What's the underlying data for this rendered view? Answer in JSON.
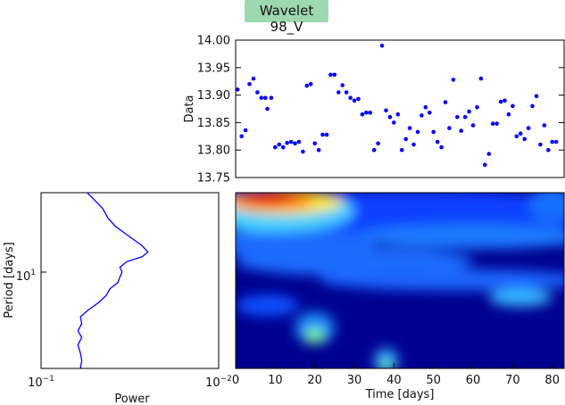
{
  "title": "Wavelet 98_V",
  "chart_data": [
    {
      "id": "data-scatter",
      "type": "scatter",
      "color": "#0000ff",
      "xlim": [
        0,
        83
      ],
      "ylim": [
        13.75,
        14.0
      ],
      "ylabel": "Data",
      "yticks": [
        "13.75",
        "13.80",
        "13.85",
        "13.90",
        "13.95",
        "14.00"
      ],
      "x": [
        0.5,
        1.5,
        2.5,
        3.5,
        4.5,
        5.5,
        6.5,
        7.5,
        8.0,
        9.0,
        10.0,
        11.0,
        12.0,
        13.0,
        14.0,
        15.0,
        16.0,
        17.0,
        18.0,
        19.0,
        20.0,
        21.0,
        22.0,
        23.0,
        24.0,
        25.0,
        26.0,
        27.0,
        28.0,
        29.0,
        30.0,
        31.0,
        32.0,
        33.0,
        34.0,
        35.0,
        36.0,
        37.0,
        38.0,
        39.0,
        40.0,
        41.0,
        42.0,
        43.0,
        44.0,
        45.0,
        46.0,
        47.0,
        48.0,
        49.0,
        50.0,
        51.0,
        52.0,
        53.0,
        54.0,
        55.0,
        56.0,
        57.0,
        58.0,
        59.0,
        60.0,
        61.0,
        62.0,
        63.0,
        64.0,
        65.0,
        66.0,
        67.0,
        68.0,
        69.0,
        70.0,
        71.0,
        72.0,
        73.0,
        74.0,
        75.0,
        76.0,
        77.0,
        78.0,
        79.0,
        80.0,
        81.0
      ],
      "y": [
        13.91,
        13.825,
        13.836,
        13.92,
        13.93,
        13.905,
        13.895,
        13.895,
        13.875,
        13.895,
        13.805,
        13.81,
        13.805,
        13.813,
        13.815,
        13.812,
        13.815,
        13.797,
        13.917,
        13.92,
        13.812,
        13.8,
        13.828,
        13.828,
        13.937,
        13.937,
        13.905,
        13.918,
        13.905,
        13.895,
        13.89,
        13.893,
        13.865,
        13.868,
        13.868,
        13.8,
        13.812,
        13.99,
        13.872,
        13.86,
        13.85,
        13.865,
        13.8,
        13.82,
        13.84,
        13.81,
        13.833,
        13.863,
        13.878,
        13.868,
        13.833,
        13.815,
        13.805,
        13.887,
        13.84,
        13.928,
        13.86,
        13.835,
        13.86,
        13.87,
        13.845,
        13.878,
        13.93,
        13.773,
        13.793,
        13.848,
        13.848,
        13.888,
        13.89,
        13.865,
        13.88,
        13.825,
        13.83,
        13.82,
        13.84,
        13.88,
        13.898,
        13.81,
        13.845,
        13.8,
        13.815,
        13.815
      ]
    },
    {
      "id": "global-power",
      "type": "line",
      "color": "#0000ff",
      "xscale": "log",
      "xlim": [
        0.1,
        0.01
      ],
      "xlabel": "Power",
      "xticks": [
        "10^-1",
        "10^-2"
      ],
      "ylabel": "Period [days]",
      "yscale": "log",
      "ylim": [
        2.2,
        36
      ],
      "yticks": [
        "10^1"
      ],
      "period": [
        2.2,
        2.5,
        2.8,
        3.2,
        3.6,
        4.0,
        4.5,
        5.0,
        5.6,
        6.2,
        7.0,
        7.8,
        8.6,
        9.4,
        10.2,
        11.0,
        12.0,
        13.0,
        14.0,
        15.5,
        17.0,
        19.0,
        21.0,
        24.0,
        28.0,
        32.0,
        36.0
      ],
      "power": [
        0.06,
        0.059,
        0.06,
        0.062,
        0.059,
        0.062,
        0.059,
        0.06,
        0.054,
        0.048,
        0.043,
        0.041,
        0.037,
        0.036,
        0.035,
        0.036,
        0.033,
        0.027,
        0.025,
        0.027,
        0.03,
        0.034,
        0.038,
        0.042,
        0.045,
        0.05,
        0.055
      ]
    },
    {
      "id": "wavelet-spectrum",
      "type": "heatmap",
      "colormap": "jet",
      "xlabel": "Time [days]",
      "xlim": [
        0,
        83
      ],
      "xticks": [
        "0",
        "10",
        "20",
        "30",
        "40",
        "50",
        "60",
        "70",
        "80"
      ],
      "ylim_period": [
        2.2,
        36
      ]
    }
  ]
}
